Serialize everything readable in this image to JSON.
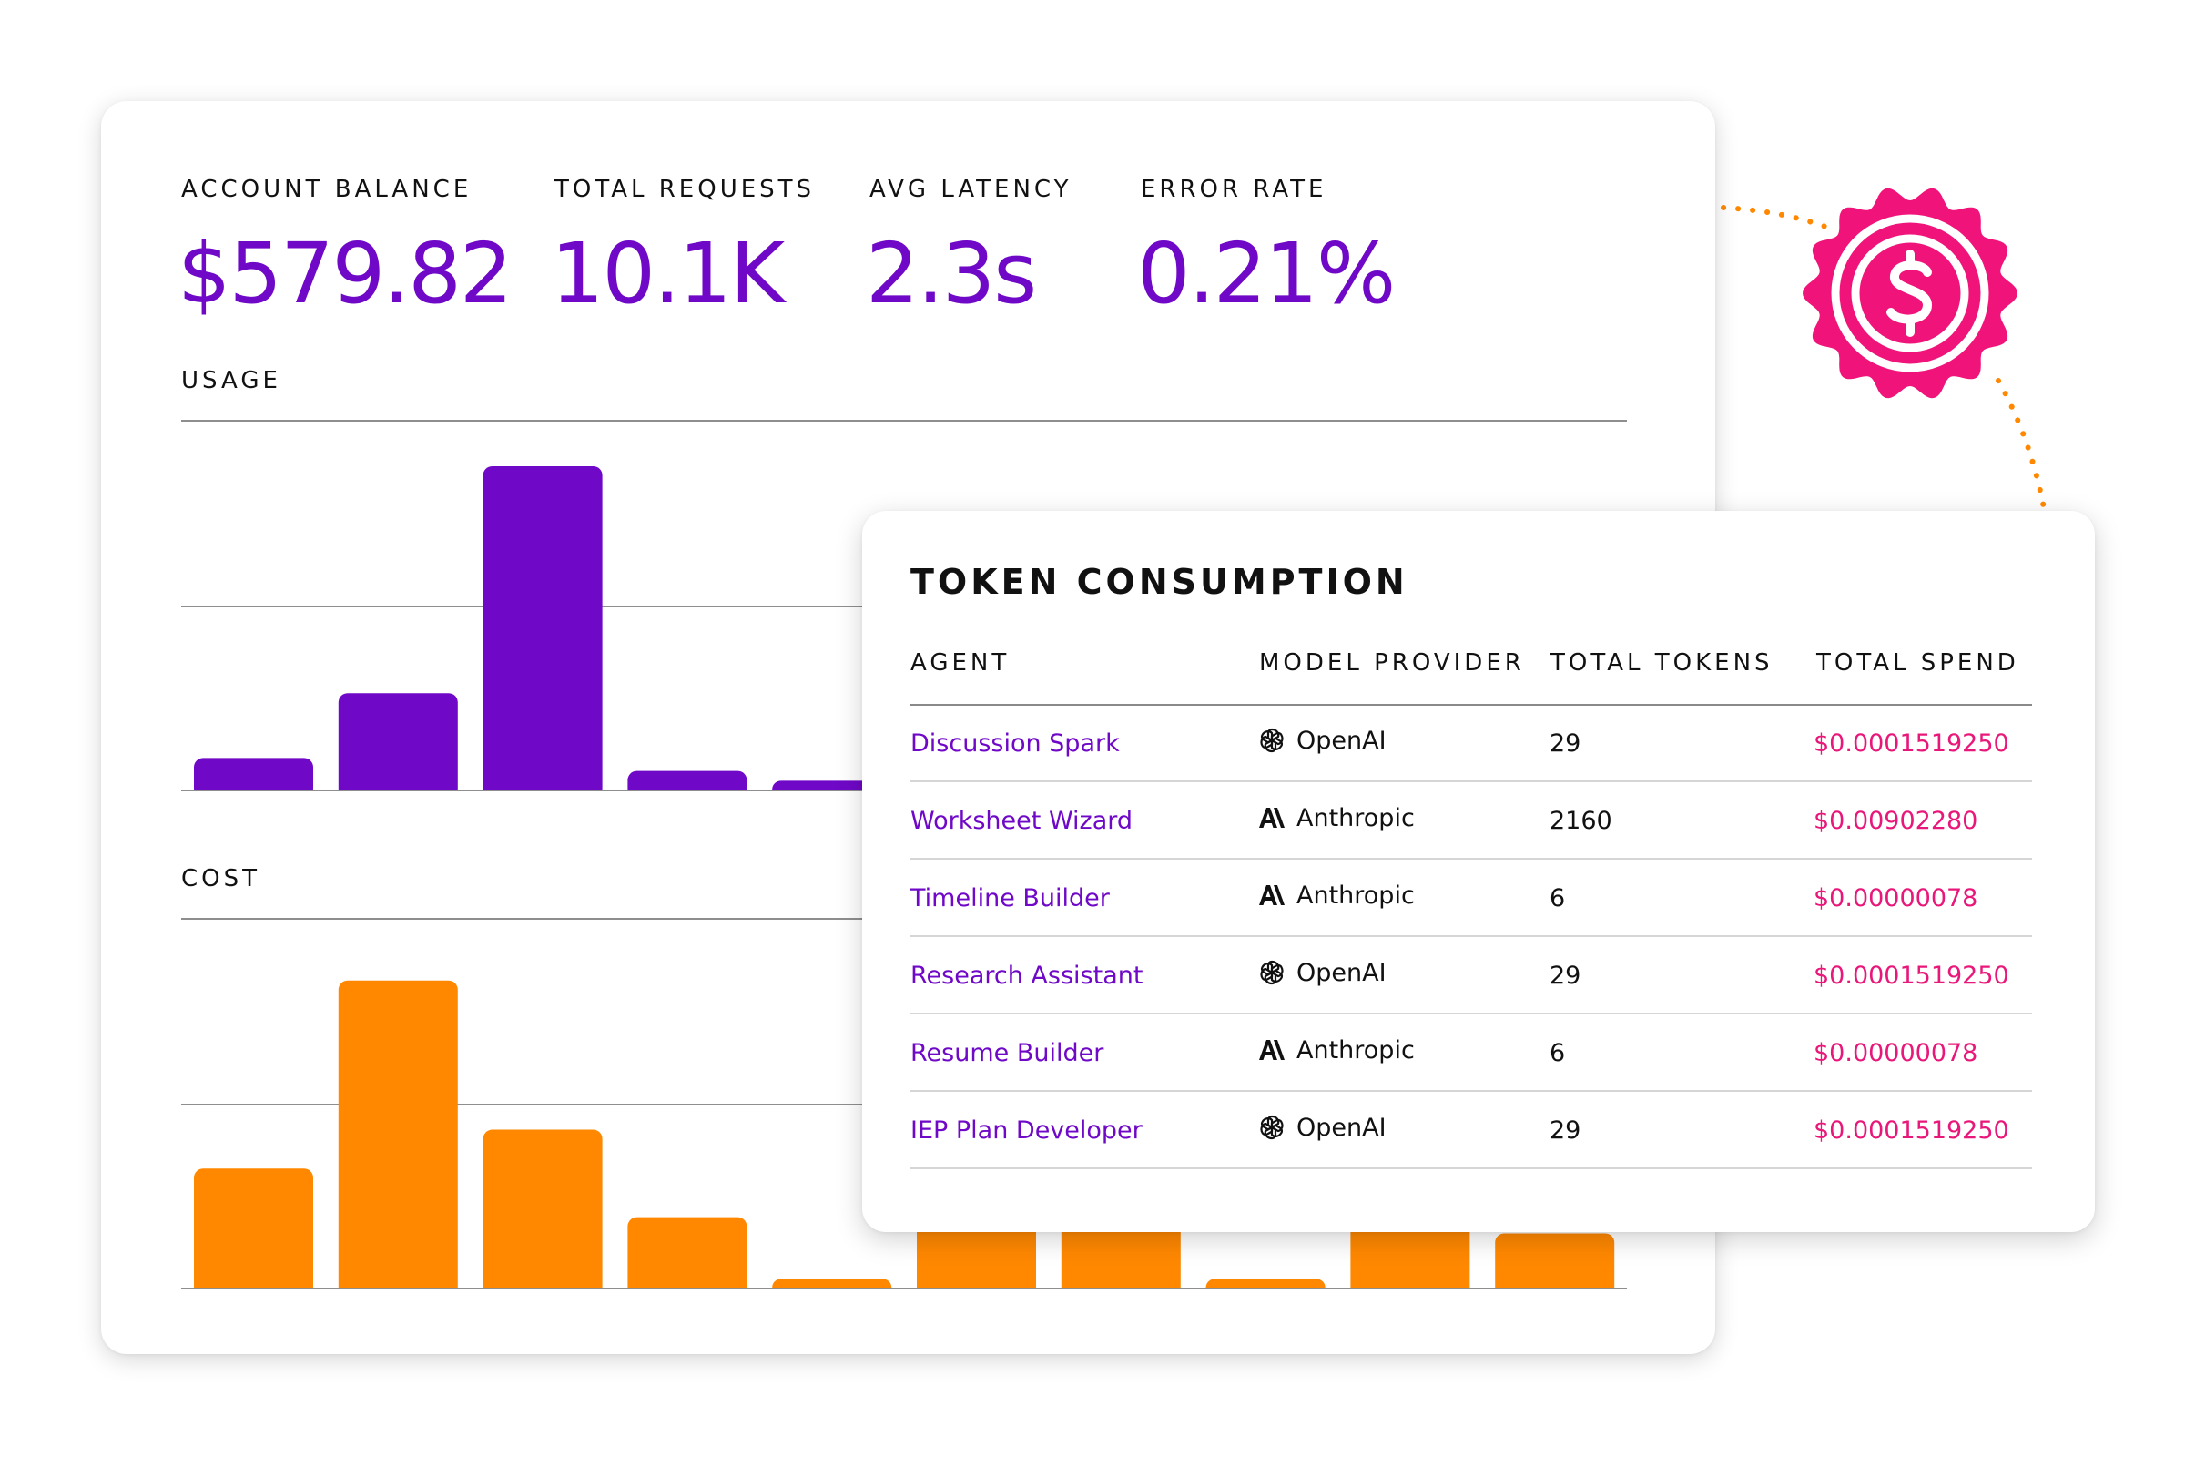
{
  "stats": [
    {
      "label": "ACCOUNT BALANCE",
      "value": "$579.82"
    },
    {
      "label": "TOTAL REQUESTS",
      "value": "10.1K"
    },
    {
      "label": "AVG LATENCY",
      "value": "2.3s"
    },
    {
      "label": "ERROR RATE",
      "value": "0.21%"
    }
  ],
  "usage_label": "USAGE",
  "cost_label": "COST",
  "colors": {
    "purple": "#6f08c7",
    "orange": "#ff8800",
    "pink": "#e8177a"
  },
  "chart_data": [
    {
      "type": "bar",
      "title": "USAGE",
      "color": "#6f08c7",
      "ylim": [
        0,
        100
      ],
      "values": [
        10,
        30,
        100,
        6,
        3
      ]
    },
    {
      "type": "bar",
      "title": "COST",
      "color": "#ff8800",
      "ylim": [
        0,
        100
      ],
      "values": [
        37,
        95,
        49,
        22,
        3,
        40,
        40,
        3,
        40,
        17
      ]
    }
  ],
  "badge": {
    "icon": "dollar-badge-icon"
  },
  "token_consumption": {
    "title": "TOKEN CONSUMPTION",
    "headers": [
      "AGENT",
      "MODEL PROVIDER",
      "TOTAL TOKENS",
      "TOTAL SPEND"
    ],
    "rows": [
      {
        "agent": "Discussion Spark",
        "provider": "OpenAI",
        "icon": "openai-icon",
        "tokens": "29",
        "spend": "$0.0001519250"
      },
      {
        "agent": "Worksheet Wizard",
        "provider": "Anthropic",
        "icon": "anthropic-icon",
        "tokens": "2160",
        "spend": "$0.00902280"
      },
      {
        "agent": "Timeline Builder",
        "provider": "Anthropic",
        "icon": "anthropic-icon",
        "tokens": "6",
        "spend": "$0.00000078"
      },
      {
        "agent": "Research Assistant",
        "provider": "OpenAI",
        "icon": "openai-icon",
        "tokens": "29",
        "spend": "$0.0001519250"
      },
      {
        "agent": "Resume Builder",
        "provider": "Anthropic",
        "icon": "anthropic-icon",
        "tokens": "6",
        "spend": "$0.00000078"
      },
      {
        "agent": "IEP Plan Developer",
        "provider": "OpenAI",
        "icon": "openai-icon",
        "tokens": "29",
        "spend": "$0.0001519250"
      }
    ]
  }
}
